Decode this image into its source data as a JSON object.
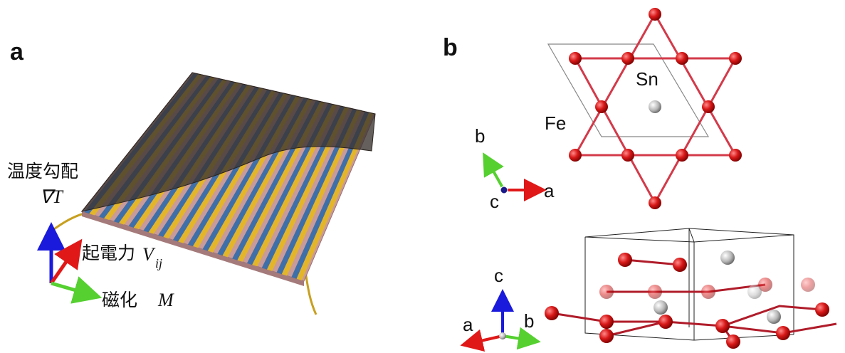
{
  "panel_a": {
    "label": "a",
    "gradient": "温度勾配",
    "gradient_symbol": "∇T",
    "emf": "起電力",
    "emf_symbol": "V",
    "emf_subscript": "ij",
    "magnetization": "磁化",
    "magnetization_symbol": "M"
  },
  "panel_b": {
    "label": "b",
    "sn": "Sn",
    "fe": "Fe",
    "top_axes": {
      "b": "b",
      "c": "c",
      "a": "a"
    },
    "bottom_axes": {
      "c": "c",
      "a": "a",
      "b": "b"
    }
  }
}
